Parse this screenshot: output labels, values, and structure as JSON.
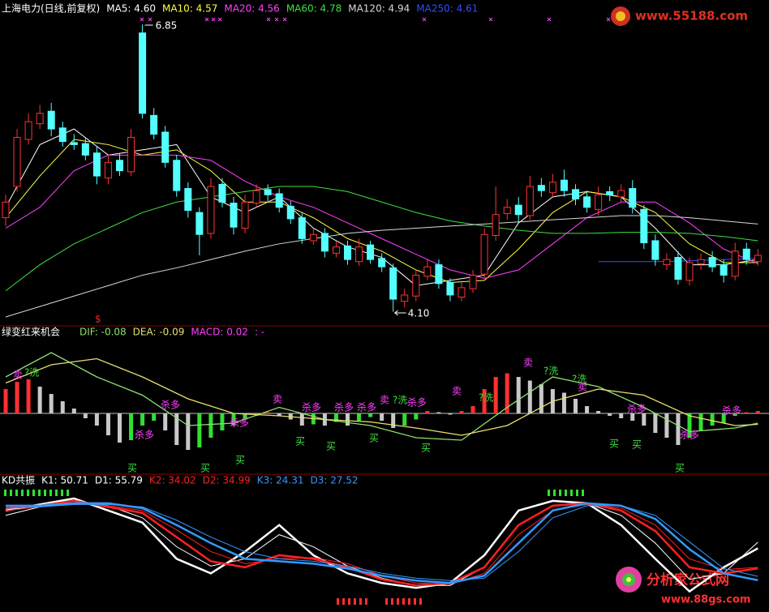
{
  "chart_data": [
    {
      "type": "candlestick",
      "title": "上海电力(日线,前复权)",
      "up_color": "#ff3232",
      "down_color": "#54ffff",
      "ylim": [
        3.98,
        6.93
      ],
      "max_label": "6.85",
      "min_label": "4.10",
      "open": [
        5.0,
        5.3,
        5.75,
        5.9,
        6.02,
        5.86,
        5.72,
        5.71,
        5.62,
        5.38,
        5.55,
        5.44,
        6.77,
        5.98,
        5.82,
        5.55,
        5.28,
        5.05,
        4.85,
        5.32,
        5.14,
        4.9,
        5.14,
        5.27,
        5.23,
        5.11,
        5.0,
        4.78,
        4.85,
        4.66,
        4.73,
        4.58,
        4.74,
        4.61,
        4.52,
        4.2,
        4.25,
        4.44,
        4.55,
        4.38,
        4.24,
        4.32,
        4.46,
        4.83,
        5.04,
        5.12,
        5.02,
        5.31,
        5.24,
        5.36,
        5.27,
        5.2,
        5.08,
        5.25,
        5.2,
        5.28,
        5.08,
        4.78,
        4.55,
        4.62,
        4.4,
        4.56,
        4.62,
        4.55,
        4.44,
        4.7,
        4.58
      ],
      "high": [
        5.22,
        5.85,
        6.0,
        6.08,
        6.1,
        5.92,
        5.8,
        5.76,
        5.68,
        5.6,
        5.62,
        5.85,
        6.85,
        6.05,
        5.88,
        5.6,
        5.34,
        5.1,
        5.38,
        5.38,
        5.2,
        5.22,
        5.32,
        5.32,
        5.28,
        5.16,
        5.05,
        4.9,
        4.9,
        4.78,
        4.78,
        4.8,
        4.78,
        4.66,
        4.56,
        4.32,
        4.5,
        4.6,
        4.6,
        4.42,
        4.38,
        4.5,
        4.9,
        5.3,
        5.18,
        5.2,
        5.4,
        5.38,
        5.42,
        5.46,
        5.32,
        5.26,
        5.3,
        5.3,
        5.32,
        5.36,
        5.12,
        4.84,
        4.66,
        4.68,
        4.62,
        4.66,
        4.68,
        4.6,
        4.76,
        4.76,
        4.7
      ],
      "low": [
        4.92,
        5.25,
        5.7,
        5.85,
        5.78,
        5.68,
        5.65,
        5.55,
        5.32,
        5.32,
        5.4,
        5.4,
        5.95,
        5.75,
        5.48,
        5.2,
        5.0,
        4.64,
        4.8,
        5.1,
        4.84,
        4.85,
        5.1,
        5.16,
        5.05,
        4.94,
        4.75,
        4.74,
        4.62,
        4.62,
        4.55,
        4.54,
        4.56,
        4.48,
        4.1,
        4.14,
        4.2,
        4.4,
        4.32,
        4.2,
        4.2,
        4.28,
        4.42,
        4.78,
        4.98,
        4.96,
        4.98,
        5.2,
        5.2,
        5.2,
        5.12,
        5.05,
        5.02,
        5.16,
        5.15,
        5.04,
        4.7,
        4.54,
        4.5,
        4.36,
        4.35,
        4.5,
        4.48,
        4.38,
        4.4,
        4.55,
        4.54
      ],
      "close": [
        5.15,
        5.77,
        5.92,
        6.0,
        5.85,
        5.73,
        5.7,
        5.6,
        5.4,
        5.53,
        5.45,
        5.77,
        6.0,
        5.8,
        5.53,
        5.26,
        5.07,
        4.84,
        5.3,
        5.15,
        4.91,
        5.15,
        5.26,
        5.22,
        5.1,
        4.99,
        4.8,
        4.84,
        4.68,
        4.72,
        4.6,
        4.72,
        4.6,
        4.53,
        4.22,
        4.26,
        4.45,
        4.53,
        4.37,
        4.26,
        4.33,
        4.45,
        4.84,
        5.03,
        5.1,
        5.03,
        5.3,
        5.26,
        5.34,
        5.26,
        5.18,
        5.1,
        5.22,
        5.22,
        5.26,
        5.1,
        4.76,
        4.6,
        4.6,
        4.41,
        4.57,
        4.6,
        4.53,
        4.45,
        4.68,
        4.6,
        4.64
      ],
      "series": [
        {
          "name": "MA5: 4.60",
          "color": "#ffffff",
          "x": [
            0,
            3,
            6,
            9,
            12,
            15,
            18,
            21,
            24,
            27,
            30,
            33,
            36,
            39,
            42,
            45,
            48,
            51,
            54,
            57,
            60,
            63,
            66
          ],
          "values": [
            5.1,
            5.7,
            5.85,
            5.6,
            5.65,
            5.7,
            5.2,
            5.05,
            5.2,
            4.9,
            4.72,
            4.62,
            4.35,
            4.4,
            4.45,
            4.95,
            5.2,
            5.25,
            5.2,
            4.9,
            4.55,
            4.55,
            4.6
          ]
        },
        {
          "name": "MA10: 4.57",
          "color": "#ffff40",
          "x": [
            0,
            3,
            6,
            9,
            12,
            15,
            18,
            21,
            24,
            27,
            30,
            33,
            36,
            39,
            42,
            45,
            48,
            51,
            54,
            57,
            60,
            63,
            66
          ],
          "values": [
            5.0,
            5.4,
            5.75,
            5.7,
            5.6,
            5.65,
            5.45,
            5.15,
            5.15,
            5.0,
            4.8,
            4.68,
            4.5,
            4.38,
            4.4,
            4.7,
            5.05,
            5.25,
            5.2,
            5.05,
            4.75,
            4.57,
            4.57
          ]
        },
        {
          "name": "MA20: 4.56",
          "color": "#ff40ff",
          "x": [
            0,
            3,
            6,
            9,
            12,
            15,
            18,
            21,
            24,
            27,
            30,
            33,
            36,
            39,
            42,
            45,
            48,
            51,
            54,
            57,
            60,
            63,
            66
          ],
          "values": [
            4.9,
            5.1,
            5.45,
            5.6,
            5.6,
            5.6,
            5.55,
            5.35,
            5.2,
            5.1,
            4.95,
            4.8,
            4.65,
            4.5,
            4.42,
            4.5,
            4.75,
            5.0,
            5.15,
            5.15,
            4.95,
            4.7,
            4.56
          ]
        },
        {
          "name": "MA60: 4.78",
          "color": "#40e040",
          "x": [
            0,
            3,
            6,
            9,
            12,
            15,
            18,
            21,
            24,
            27,
            30,
            33,
            36,
            39,
            42,
            45,
            48,
            51,
            54,
            57,
            60,
            63,
            66
          ],
          "values": [
            4.3,
            4.55,
            4.75,
            4.9,
            5.05,
            5.15,
            5.2,
            5.25,
            5.3,
            5.3,
            5.25,
            5.15,
            5.05,
            4.97,
            4.92,
            4.88,
            4.85,
            4.85,
            4.86,
            4.86,
            4.85,
            4.82,
            4.78
          ]
        },
        {
          "name": "MA120: 4.94",
          "color": "#d8d8d8",
          "x": [
            0,
            3,
            6,
            9,
            12,
            15,
            18,
            21,
            24,
            27,
            30,
            33,
            36,
            39,
            42,
            45,
            48,
            51,
            54,
            57,
            60,
            63,
            66
          ],
          "values": [
            4.05,
            4.15,
            4.25,
            4.35,
            4.45,
            4.52,
            4.6,
            4.68,
            4.75,
            4.8,
            4.85,
            4.88,
            4.9,
            4.92,
            4.94,
            4.96,
            4.98,
            5.0,
            5.02,
            5.02,
            5.0,
            4.97,
            4.94
          ]
        },
        {
          "name": "MA250: 4.61",
          "color": "#3050ff",
          "x": [
            52,
            58,
            63,
            66
          ],
          "values": [
            4.58,
            4.58,
            4.6,
            4.61
          ]
        }
      ]
    },
    {
      "type": "macd",
      "title": "绿变红来机会",
      "note": ":  -",
      "ylim": [
        -0.5,
        0.7
      ],
      "histogram": {
        "name": "MACD: 0.02",
        "color": "#ff40ff",
        "colors": {
          "rise": "#ff3030",
          "fall": "#c8c8c8",
          "recover": "#30e030"
        },
        "values": [
          0.2,
          0.26,
          0.28,
          0.22,
          0.16,
          0.1,
          0.04,
          -0.04,
          -0.1,
          -0.18,
          -0.24,
          -0.22,
          -0.1,
          -0.06,
          -0.14,
          -0.26,
          -0.3,
          -0.28,
          -0.2,
          -0.14,
          -0.1,
          -0.05,
          -0.02,
          0.01,
          -0.02,
          -0.05,
          -0.1,
          -0.09,
          -0.1,
          -0.07,
          -0.1,
          -0.06,
          -0.03,
          -0.06,
          -0.12,
          -0.1,
          -0.05,
          0.02,
          0.01,
          -0.01,
          0.02,
          0.06,
          0.2,
          0.3,
          0.33,
          0.3,
          0.27,
          0.24,
          0.2,
          0.17,
          0.12,
          0.06,
          0.02,
          -0.02,
          -0.04,
          -0.06,
          -0.1,
          -0.16,
          -0.2,
          -0.26,
          -0.2,
          -0.14,
          -0.1,
          -0.08,
          -0.02,
          0.01,
          0.02
        ]
      },
      "series": [
        {
          "name": "DIF: -0.08",
          "color": "#8fe070",
          "x": [
            0,
            4,
            8,
            12,
            16,
            20,
            24,
            28,
            32,
            36,
            40,
            44,
            48,
            52,
            56,
            60,
            64,
            66
          ],
          "values": [
            0.3,
            0.5,
            0.3,
            0.15,
            -0.1,
            -0.08,
            0.05,
            -0.05,
            -0.1,
            -0.2,
            -0.22,
            0.05,
            0.3,
            0.22,
            0.05,
            -0.15,
            -0.12,
            -0.08
          ]
        },
        {
          "name": "DEA: -0.09",
          "color": "#e8e070",
          "x": [
            0,
            4,
            8,
            12,
            16,
            20,
            24,
            28,
            32,
            36,
            40,
            44,
            48,
            52,
            56,
            60,
            64,
            66
          ],
          "values": [
            0.25,
            0.4,
            0.45,
            0.3,
            0.12,
            0.0,
            -0.02,
            -0.05,
            -0.07,
            -0.12,
            -0.18,
            -0.1,
            0.1,
            0.2,
            0.15,
            -0.02,
            -0.1,
            -0.09
          ]
        }
      ],
      "signals": [
        {
          "text": "卖",
          "color": "#ff40ff"
        },
        {
          "text": "?洗",
          "color": "#40e040"
        },
        {
          "text": "杀多",
          "color": "#ff40ff"
        },
        {
          "text": "杀多",
          "color": "#ff40ff"
        },
        {
          "text": "买",
          "color": "#40e040"
        },
        {
          "text": "买",
          "color": "#40e040"
        },
        {
          "text": "杀多",
          "color": "#ff40ff"
        },
        {
          "text": "买",
          "color": "#40e040"
        },
        {
          "text": "卖",
          "color": "#ff40ff"
        },
        {
          "text": "买",
          "color": "#40e040"
        },
        {
          "text": "杀多",
          "color": "#ff40ff"
        },
        {
          "text": "买",
          "color": "#40e040"
        },
        {
          "text": "杀多",
          "color": "#ff40ff"
        },
        {
          "text": "杀多",
          "color": "#ff40ff"
        },
        {
          "text": "买",
          "color": "#40e040"
        },
        {
          "text": "卖",
          "color": "#ff40ff"
        },
        {
          "text": "?洗",
          "color": "#40e040"
        },
        {
          "text": "杀多",
          "color": "#ff40ff"
        },
        {
          "text": "买",
          "color": "#40e040"
        },
        {
          "text": "卖",
          "color": "#ff40ff"
        },
        {
          "text": "?洗",
          "color": "#40e040"
        },
        {
          "text": "卖",
          "color": "#ff40ff"
        },
        {
          "text": "?洗",
          "color": "#40e040"
        },
        {
          "text": "?洗",
          "color": "#40e040"
        },
        {
          "text": "卖",
          "color": "#ff40ff"
        },
        {
          "text": "买",
          "color": "#40e040"
        },
        {
          "text": "买",
          "color": "#40e040"
        },
        {
          "text": "杀多",
          "color": "#ff40ff"
        },
        {
          "text": "买",
          "color": "#40e040"
        },
        {
          "text": "杀多",
          "color": "#ff40ff"
        },
        {
          "text": "杀多",
          "color": "#ff40ff"
        }
      ]
    },
    {
      "type": "line",
      "title": "KD共振",
      "ylim": [
        0,
        100
      ],
      "series": [
        {
          "name": "K1: 50.71",
          "color": "#ffffff",
          "x": [
            0,
            3,
            6,
            9,
            12,
            15,
            18,
            21,
            24,
            27,
            30,
            33,
            36,
            39,
            42,
            45,
            48,
            51,
            54,
            57,
            60,
            63,
            66
          ],
          "values": [
            82,
            87,
            92,
            82,
            72,
            42,
            30,
            48,
            70,
            45,
            30,
            22,
            18,
            22,
            45,
            82,
            90,
            88,
            70,
            42,
            15,
            35,
            50.71
          ]
        },
        {
          "name": "D1: 55.79",
          "color": "#ffffff",
          "x": [
            0,
            3,
            6,
            9,
            12,
            15,
            18,
            21,
            24,
            27,
            30,
            33,
            36,
            39,
            42,
            45,
            48,
            51,
            54,
            57,
            60,
            63,
            66
          ],
          "values": [
            78,
            85,
            90,
            86,
            76,
            52,
            36,
            42,
            62,
            52,
            36,
            26,
            20,
            20,
            35,
            70,
            86,
            88,
            78,
            55,
            25,
            30,
            55.79
          ]
        },
        {
          "name": "K2: 34.02",
          "color": "#ff2020",
          "x": [
            0,
            3,
            6,
            9,
            12,
            15,
            18,
            21,
            24,
            27,
            30,
            33,
            36,
            39,
            42,
            45,
            48,
            51,
            54,
            57,
            60,
            63,
            66
          ],
          "values": [
            84,
            86,
            90,
            85,
            80,
            60,
            40,
            35,
            45,
            42,
            35,
            25,
            20,
            22,
            35,
            70,
            86,
            88,
            82,
            65,
            35,
            30,
            34.02
          ]
        },
        {
          "name": "D2: 34.99",
          "color": "#ff2020",
          "x": [
            0,
            3,
            6,
            9,
            12,
            15,
            18,
            21,
            24,
            27,
            30,
            33,
            36,
            39,
            42,
            45,
            48,
            51,
            54,
            57,
            60,
            63,
            66
          ],
          "values": [
            82,
            85,
            88,
            86,
            82,
            66,
            48,
            38,
            42,
            43,
            38,
            28,
            22,
            21,
            30,
            62,
            82,
            87,
            84,
            70,
            42,
            33,
            34.99
          ]
        },
        {
          "name": "K3: 24.31",
          "color": "#3399ff",
          "x": [
            0,
            3,
            6,
            9,
            12,
            15,
            18,
            21,
            24,
            27,
            30,
            33,
            36,
            39,
            42,
            45,
            48,
            51,
            54,
            57,
            60,
            63,
            66
          ],
          "values": [
            86,
            86,
            88,
            88,
            84,
            70,
            55,
            42,
            40,
            38,
            34,
            28,
            24,
            22,
            28,
            55,
            82,
            88,
            86,
            75,
            50,
            30,
            24.31
          ]
        },
        {
          "name": "D3: 27.52",
          "color": "#3399ff",
          "x": [
            0,
            3,
            6,
            9,
            12,
            15,
            18,
            21,
            24,
            27,
            30,
            33,
            36,
            39,
            42,
            45,
            48,
            51,
            54,
            57,
            60,
            63,
            66
          ],
          "values": [
            84,
            85,
            87,
            87,
            85,
            74,
            60,
            48,
            42,
            40,
            36,
            30,
            26,
            24,
            26,
            48,
            76,
            86,
            86,
            78,
            56,
            34,
            27.52
          ]
        }
      ]
    }
  ],
  "watermark": {
    "site1": "www.55188.com",
    "site2_name": "分析家公式网",
    "site2_url": "www.88gs.com",
    "dollar": "$"
  }
}
